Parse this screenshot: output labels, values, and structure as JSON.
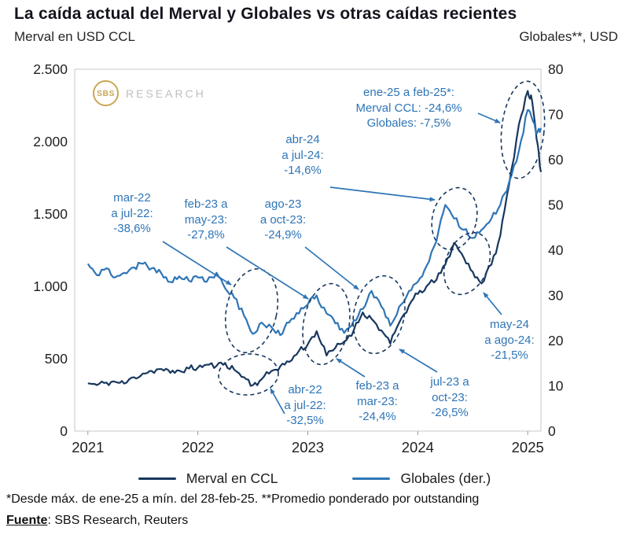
{
  "chart_data": {
    "type": "line",
    "title": "La caída actual del Merval y Globales vs otras caídas recientes",
    "x_domain": [
      2020.88,
      2025.12
    ],
    "x_ticks": [
      {
        "t": 2021,
        "label": "2021"
      },
      {
        "t": 2022,
        "label": "2022"
      },
      {
        "t": 2023,
        "label": "2023"
      },
      {
        "t": 2024,
        "label": "2024"
      },
      {
        "t": 2025,
        "label": "2025"
      }
    ],
    "y_left": {
      "label": "Merval en USD CCL",
      "domain": [
        0,
        2500
      ],
      "tick_values": [
        0,
        500,
        1000,
        1500,
        2000,
        2500
      ],
      "ticks": [
        "0",
        "500",
        "1.000",
        "1.500",
        "2.000",
        "2.500"
      ]
    },
    "y_right": {
      "label": "Globales**, USD",
      "domain": [
        0,
        80
      ],
      "tick_values": [
        0,
        10,
        20,
        30,
        40,
        50,
        60,
        70,
        80
      ],
      "ticks": [
        "0",
        "10",
        "20",
        "30",
        "40",
        "50",
        "60",
        "70",
        "80"
      ]
    },
    "colors": {
      "merval": "#17375E",
      "globales": "#2E75B6",
      "annotation": "#2E75B6",
      "ellipse": "#17375E"
    },
    "series": [
      {
        "name": "Merval en CCL",
        "axis": "left",
        "color": "#17375E",
        "points": [
          [
            2021,
            330
          ],
          [
            2021.08,
            318
          ],
          [
            2021.17,
            335
          ],
          [
            2021.25,
            340
          ],
          [
            2021.33,
            328
          ],
          [
            2021.42,
            372
          ],
          [
            2021.5,
            398
          ],
          [
            2021.58,
            415
          ],
          [
            2021.67,
            428
          ],
          [
            2021.75,
            402
          ],
          [
            2021.83,
            418
          ],
          [
            2021.92,
            432
          ],
          [
            2022,
            438
          ],
          [
            2022.08,
            458
          ],
          [
            2022.17,
            450
          ],
          [
            2022.25,
            468
          ],
          [
            2022.33,
            425
          ],
          [
            2022.42,
            372
          ],
          [
            2022.5,
            317
          ],
          [
            2022.58,
            358
          ],
          [
            2022.67,
            415
          ],
          [
            2022.75,
            448
          ],
          [
            2022.83,
            478
          ],
          [
            2022.92,
            555
          ],
          [
            2023,
            600
          ],
          [
            2023.08,
            690
          ],
          [
            2023.17,
            522
          ],
          [
            2023.25,
            575
          ],
          [
            2023.33,
            618
          ],
          [
            2023.42,
            700
          ],
          [
            2023.5,
            820
          ],
          [
            2023.58,
            775
          ],
          [
            2023.67,
            695
          ],
          [
            2023.75,
            603
          ],
          [
            2023.83,
            748
          ],
          [
            2023.92,
            868
          ],
          [
            2024,
            948
          ],
          [
            2024.08,
            1000
          ],
          [
            2024.17,
            1045
          ],
          [
            2024.25,
            1150
          ],
          [
            2024.33,
            1300
          ],
          [
            2024.42,
            1195
          ],
          [
            2024.5,
            1100
          ],
          [
            2024.58,
            1020
          ],
          [
            2024.67,
            1150
          ],
          [
            2024.75,
            1350
          ],
          [
            2024.83,
            1700
          ],
          [
            2024.92,
            2120
          ],
          [
            2025,
            2350
          ],
          [
            2025.04,
            2280
          ],
          [
            2025.08,
            2020
          ],
          [
            2025.12,
            1790
          ]
        ]
      },
      {
        "name": "Globales (der.)",
        "axis": "right",
        "color": "#2E75B6",
        "points": [
          [
            2021,
            37
          ],
          [
            2021.08,
            34.5
          ],
          [
            2021.17,
            36
          ],
          [
            2021.25,
            34
          ],
          [
            2021.33,
            35
          ],
          [
            2021.42,
            36.2
          ],
          [
            2021.5,
            37
          ],
          [
            2021.58,
            36
          ],
          [
            2021.67,
            34.8
          ],
          [
            2021.75,
            33
          ],
          [
            2021.83,
            34.2
          ],
          [
            2021.92,
            33.2
          ],
          [
            2022,
            34
          ],
          [
            2022.08,
            33
          ],
          [
            2022.17,
            35
          ],
          [
            2022.25,
            31.5
          ],
          [
            2022.33,
            29.5
          ],
          [
            2022.42,
            25.5
          ],
          [
            2022.5,
            21.5
          ],
          [
            2022.58,
            24
          ],
          [
            2022.67,
            23
          ],
          [
            2022.75,
            21.2
          ],
          [
            2022.83,
            24
          ],
          [
            2022.92,
            26
          ],
          [
            2023,
            28
          ],
          [
            2023.08,
            30
          ],
          [
            2023.17,
            26
          ],
          [
            2023.25,
            23.8
          ],
          [
            2023.33,
            21.7
          ],
          [
            2023.42,
            24.5
          ],
          [
            2023.5,
            27
          ],
          [
            2023.58,
            31
          ],
          [
            2023.67,
            27.5
          ],
          [
            2023.75,
            23.3
          ],
          [
            2023.83,
            27.5
          ],
          [
            2023.92,
            31
          ],
          [
            2024,
            33
          ],
          [
            2024.08,
            36.5
          ],
          [
            2024.17,
            42
          ],
          [
            2024.25,
            50
          ],
          [
            2024.33,
            47
          ],
          [
            2024.42,
            44.5
          ],
          [
            2024.5,
            42.7
          ],
          [
            2024.58,
            44.5
          ],
          [
            2024.67,
            47
          ],
          [
            2024.75,
            50
          ],
          [
            2024.83,
            55
          ],
          [
            2024.92,
            62
          ],
          [
            2025,
            71
          ],
          [
            2025.04,
            69
          ],
          [
            2025.08,
            65.7
          ],
          [
            2025.12,
            67
          ]
        ]
      }
    ],
    "annotations": [
      {
        "id": "globales-mar22-jul22",
        "text": "mar-22\na jul-22:\n-38,6%"
      },
      {
        "id": "globales-feb23-may23",
        "text": "feb-23 a\nmay-23:\n-27,8%"
      },
      {
        "id": "globales-ago23-oct23",
        "text": "ago-23\na oct-23:\n-24,9%"
      },
      {
        "id": "globales-abr24-jul24",
        "text": "abr-24\na jul-24:\n-14,6%"
      },
      {
        "id": "ene25-feb25",
        "text": "ene-25 a feb-25*:\nMerval CCL: -24,6%\nGlobales: -7,5%"
      },
      {
        "id": "merval-abr22-jul22",
        "text": "abr-22\na jul-22:\n-32,5%"
      },
      {
        "id": "merval-feb23-mar23",
        "text": "feb-23 a\nmar-23:\n-24,4%"
      },
      {
        "id": "merval-jul23-oct23",
        "text": "jul-23 a\noct-23:\n-26,5%"
      },
      {
        "id": "merval-may24-ago24",
        "text": "may-24\na ago-24:\n-21,5%"
      }
    ],
    "drawdowns": [
      {
        "series": "Globales",
        "from": "mar-22",
        "to": "jul-22",
        "change_pct": -38.6
      },
      {
        "series": "Globales",
        "from": "feb-23",
        "to": "may-23",
        "change_pct": -27.8
      },
      {
        "series": "Globales",
        "from": "ago-23",
        "to": "oct-23",
        "change_pct": -24.9
      },
      {
        "series": "Globales",
        "from": "abr-24",
        "to": "jul-24",
        "change_pct": -14.6
      },
      {
        "series": "Merval CCL",
        "from": "ene-25",
        "to": "feb-25",
        "change_pct": -24.6
      },
      {
        "series": "Globales",
        "from": "ene-25",
        "to": "feb-25",
        "change_pct": -7.5
      },
      {
        "series": "Merval CCL",
        "from": "abr-22",
        "to": "jul-22",
        "change_pct": -32.5
      },
      {
        "series": "Merval CCL",
        "from": "feb-23",
        "to": "mar-23",
        "change_pct": -24.4
      },
      {
        "series": "Merval CCL",
        "from": "jul-23",
        "to": "oct-23",
        "change_pct": -26.5
      },
      {
        "series": "Merval CCL",
        "from": "may-24",
        "to": "ago-24",
        "change_pct": -21.5
      }
    ]
  },
  "watermark": {
    "brand": "SBS",
    "text": "RESEARCH",
    "color": "#C7A34C"
  },
  "legend": [
    {
      "label": "Merval en CCL",
      "color": "#17375E"
    },
    {
      "label": "Globales (der.)",
      "color": "#2E75B6"
    }
  ],
  "footnotes": {
    "note": "*Desde máx. de ene-25 a mín. del 28-feb-25. **Promedio ponderado por outstanding",
    "source_label": "Fuente",
    "source_text": ": SBS Research, Reuters"
  }
}
